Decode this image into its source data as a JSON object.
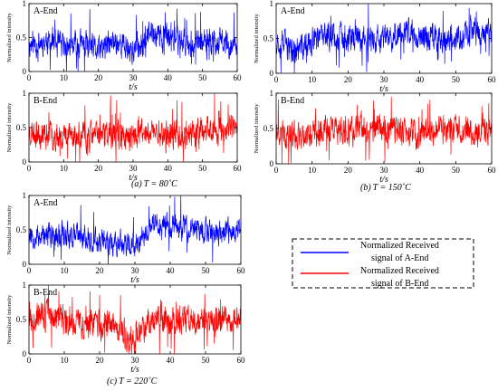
{
  "colors": {
    "a_end": "#0000ff",
    "b_end": "#ff0000",
    "axis": "#000000"
  },
  "captions": [
    {
      "prefix": "(a)",
      "text": "T = 80˚C"
    },
    {
      "prefix": "(b)",
      "text": "T = 150˚C"
    },
    {
      "prefix": "(c)",
      "text": "T = 220˚C"
    }
  ],
  "legend": {
    "entries": [
      {
        "line1": "Normalized Received",
        "line2": "signal of A-End",
        "color": "#0000ff"
      },
      {
        "line1": "Normalized Received",
        "line2": "signal of B-End",
        "color": "#ff0000"
      }
    ]
  },
  "chart_data": [
    {
      "type": "line",
      "group": "(a) T = 80˚C",
      "panel_title": "A-End",
      "ylabel": "Normalized intensity",
      "xlabel": "t/s",
      "xlim": [
        0,
        60
      ],
      "ylim": [
        0,
        1
      ],
      "xticks": [
        0,
        10,
        20,
        30,
        40,
        50,
        60
      ],
      "yticks": [
        0,
        0.5,
        1
      ],
      "series": [
        {
          "name": "A-End",
          "color": "#0000ff",
          "mean": 0.42,
          "spread": 0.2,
          "x": [
            0,
            5,
            10,
            15,
            20,
            25,
            30,
            35,
            40,
            45,
            50,
            55,
            60
          ],
          "values": [
            0.4,
            0.45,
            0.35,
            0.4,
            0.3,
            0.45,
            0.3,
            0.55,
            0.5,
            0.45,
            0.4,
            0.45,
            0.35
          ]
        }
      ]
    },
    {
      "type": "line",
      "group": "(a) T = 80˚C",
      "panel_title": "B-End",
      "ylabel": "Normalized intensity",
      "xlabel": "t/s",
      "xlim": [
        0,
        60
      ],
      "ylim": [
        0,
        1
      ],
      "xticks": [
        0,
        10,
        20,
        30,
        40,
        50,
        60
      ],
      "yticks": [
        0,
        0.5,
        1
      ],
      "series": [
        {
          "name": "B-End",
          "color": "#ff0000",
          "mean": 0.4,
          "spread": 0.2,
          "x": [
            0,
            5,
            10,
            15,
            20,
            25,
            30,
            35,
            40,
            45,
            50,
            55,
            60
          ],
          "values": [
            0.45,
            0.4,
            0.4,
            0.35,
            0.4,
            0.4,
            0.35,
            0.45,
            0.4,
            0.4,
            0.45,
            0.5,
            0.45
          ]
        }
      ]
    },
    {
      "type": "line",
      "group": "(b) T = 150˚C",
      "panel_title": "A-End",
      "ylabel": "Normalized intensity",
      "xlabel": "t/s",
      "xlim": [
        0,
        60
      ],
      "ylim": [
        0,
        1
      ],
      "xticks": [
        0,
        10,
        20,
        30,
        40,
        50,
        60
      ],
      "yticks": [
        0,
        0.5,
        1
      ],
      "series": [
        {
          "name": "A-End",
          "color": "#0000ff",
          "mean": 0.5,
          "spread": 0.2,
          "x": [
            0,
            5,
            10,
            15,
            20,
            25,
            30,
            35,
            40,
            45,
            50,
            55,
            60
          ],
          "values": [
            0.5,
            0.3,
            0.45,
            0.55,
            0.5,
            0.5,
            0.45,
            0.6,
            0.55,
            0.5,
            0.5,
            0.6,
            0.55
          ]
        }
      ]
    },
    {
      "type": "line",
      "group": "(b) T = 150˚C",
      "panel_title": "B-End",
      "ylabel": "Normalized intensity",
      "xlabel": "t/s",
      "xlim": [
        0,
        60
      ],
      "ylim": [
        0,
        1
      ],
      "xticks": [
        0,
        10,
        20,
        30,
        40,
        50,
        60
      ],
      "yticks": [
        0,
        0.5,
        1
      ],
      "series": [
        {
          "name": "B-End",
          "color": "#ff0000",
          "mean": 0.45,
          "spread": 0.2,
          "x": [
            0,
            5,
            10,
            15,
            20,
            25,
            30,
            35,
            40,
            45,
            50,
            55,
            60
          ],
          "values": [
            0.45,
            0.4,
            0.45,
            0.5,
            0.45,
            0.5,
            0.5,
            0.45,
            0.4,
            0.5,
            0.5,
            0.45,
            0.45
          ]
        }
      ]
    },
    {
      "type": "line",
      "group": "(c) T = 220˚C",
      "panel_title": "A-End",
      "ylabel": "Normalized intensity",
      "xlabel": "t/s",
      "xlim": [
        0,
        60
      ],
      "ylim": [
        0,
        1
      ],
      "xticks": [
        0,
        10,
        20,
        30,
        40,
        50,
        60
      ],
      "yticks": [
        0,
        0.5,
        1
      ],
      "series": [
        {
          "name": "A-End",
          "color": "#0000ff",
          "mean": 0.45,
          "spread": 0.18,
          "x": [
            0,
            5,
            10,
            15,
            20,
            25,
            30,
            35,
            40,
            45,
            50,
            55,
            60
          ],
          "values": [
            0.45,
            0.4,
            0.45,
            0.4,
            0.35,
            0.3,
            0.25,
            0.6,
            0.55,
            0.5,
            0.5,
            0.45,
            0.5
          ]
        }
      ]
    },
    {
      "type": "line",
      "group": "(c) T = 220˚C",
      "panel_title": "B-End",
      "ylabel": "Normalized intensity",
      "xlabel": "t/s",
      "xlim": [
        0,
        60
      ],
      "ylim": [
        0,
        1
      ],
      "xticks": [
        0,
        10,
        20,
        30,
        40,
        50,
        60
      ],
      "yticks": [
        0,
        0.5,
        1
      ],
      "series": [
        {
          "name": "B-End",
          "color": "#ff0000",
          "mean": 0.5,
          "spread": 0.2,
          "x": [
            0,
            5,
            10,
            15,
            20,
            25,
            30,
            35,
            40,
            45,
            50,
            55,
            60
          ],
          "values": [
            0.55,
            0.55,
            0.5,
            0.45,
            0.4,
            0.35,
            0.25,
            0.55,
            0.5,
            0.5,
            0.45,
            0.5,
            0.55
          ]
        }
      ]
    }
  ]
}
